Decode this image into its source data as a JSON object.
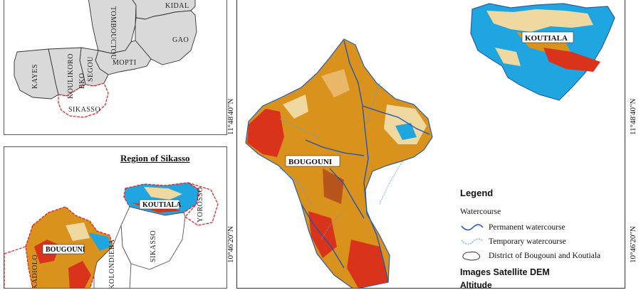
{
  "inset_mali": {
    "regions": [
      "TOMBOUCTOU",
      "KIDAL",
      "GAO",
      "MOPTI",
      "SEGOU",
      "KOULIKORO",
      "KAYES",
      "BKO",
      "SIKASSO"
    ],
    "fill_color": "#d9d9d9",
    "highlight_color": "#e0262a"
  },
  "inset_sikasso": {
    "title": "Region of Sikasso",
    "districts": [
      "BOUGOUNI",
      "KOUTIALA",
      "YOROSSO",
      "SIKASSO",
      "KADIOLO",
      "KOLONDIEBA"
    ],
    "border_color": "#e0262a"
  },
  "main_map": {
    "districts": [
      "BOUGOUNI",
      "KOUTIALA"
    ],
    "coordinates": [
      "11°48'40\"N",
      "10°46'20\"N"
    ],
    "elevation_colors": [
      "#1fa6e0",
      "#f0d9a0",
      "#d9921c",
      "#d9331c"
    ]
  },
  "legend": {
    "title": "Legend",
    "subtitle": "Watercourse",
    "items": [
      {
        "label": "Permanent watercourse",
        "icon": "permanent-watercourse-line"
      },
      {
        "label": "Temporary watercourse",
        "icon": "temporary-watercourse-line"
      },
      {
        "label": "District of Bougouni  and  Koutiala",
        "icon": "district-outline"
      }
    ],
    "dem_title": "Images Satellite DEM",
    "altitude_label": "Altitude"
  }
}
